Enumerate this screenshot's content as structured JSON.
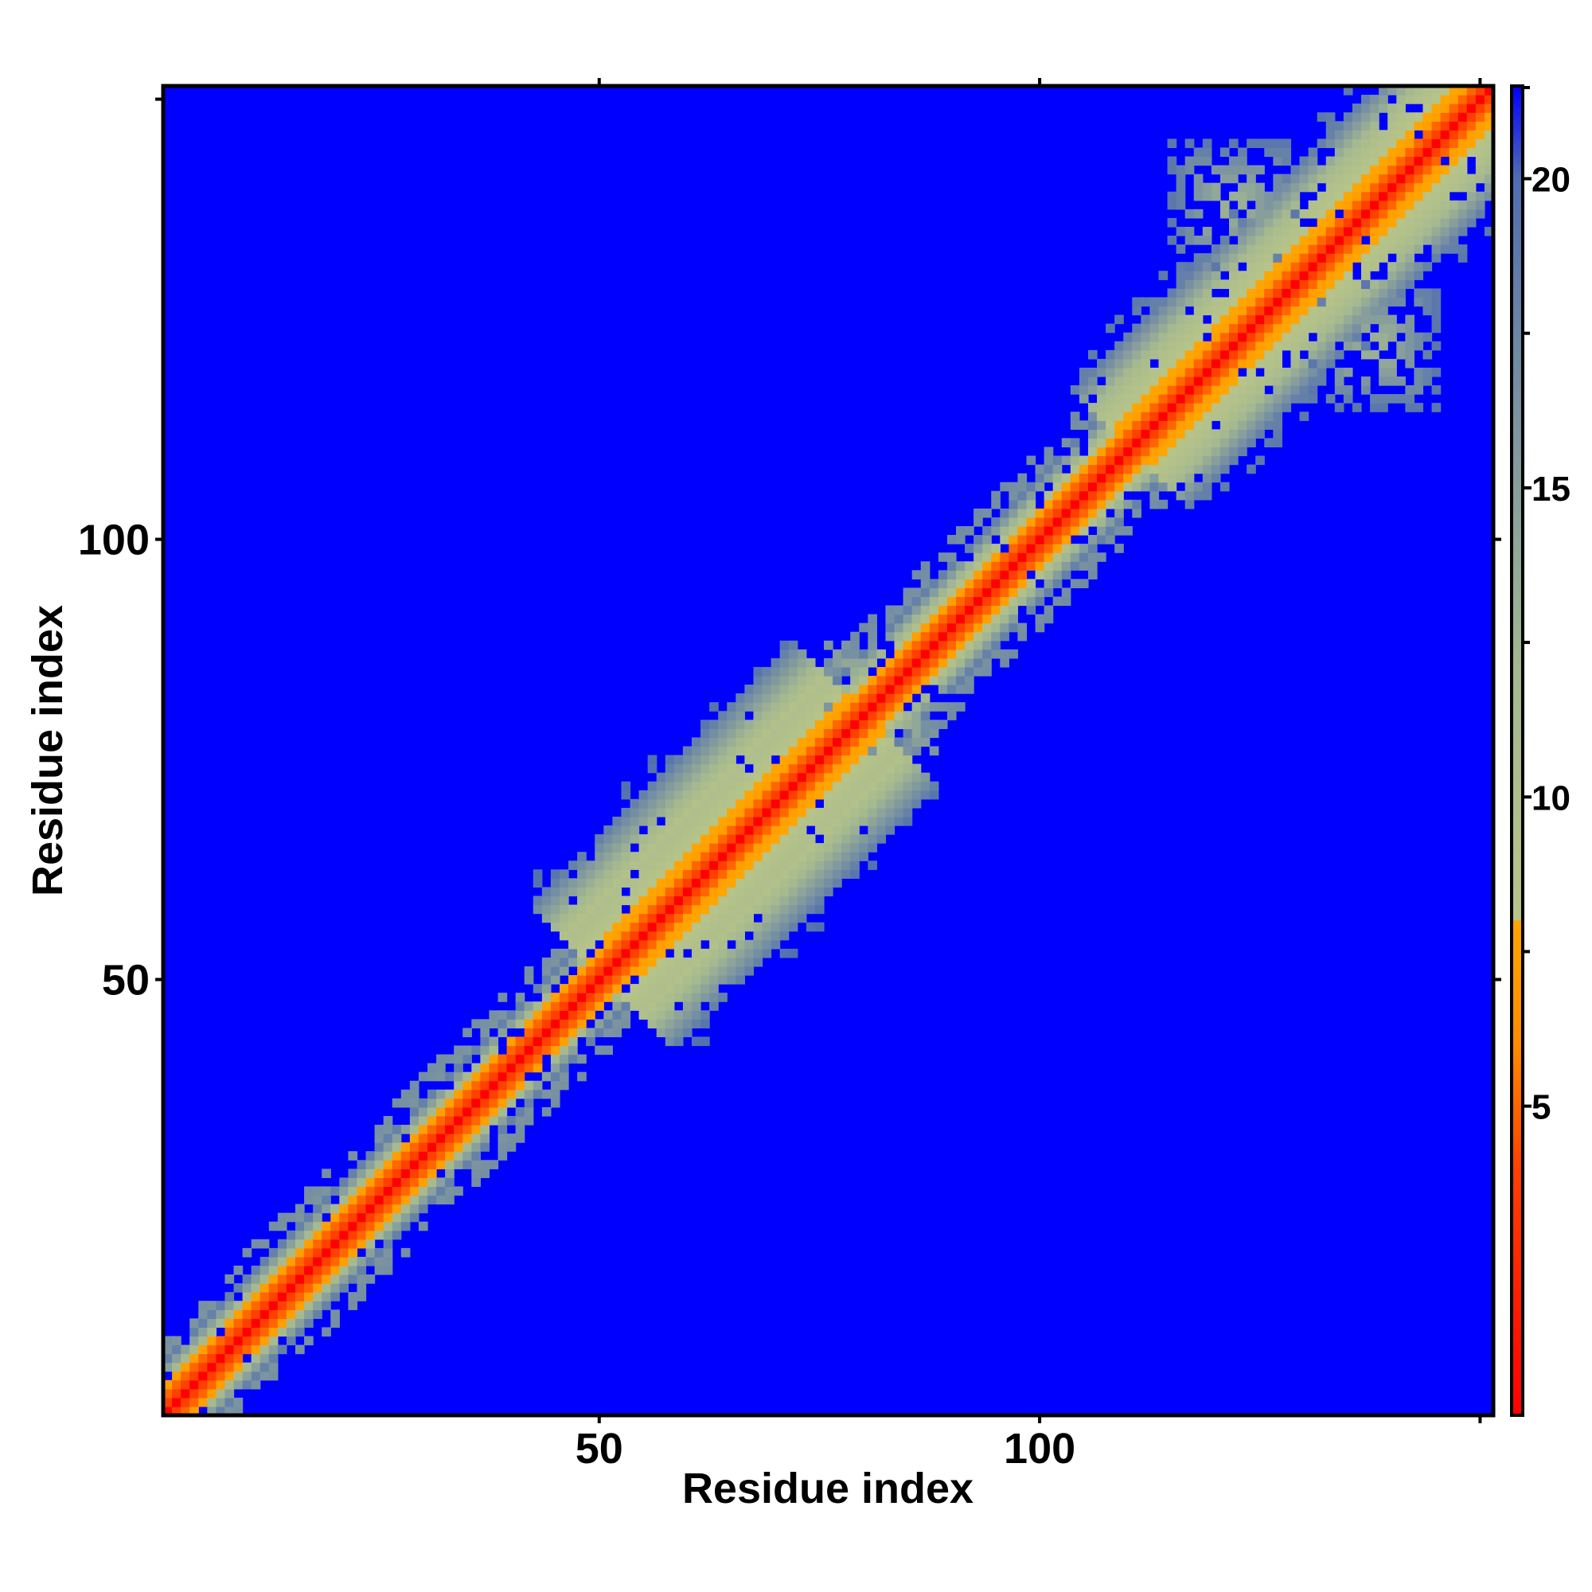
{
  "chart_data": {
    "type": "heatmap",
    "title": "",
    "xlabel": "Residue index",
    "ylabel": "Residue index",
    "n_residues": 151,
    "xlim": [
      1,
      151
    ],
    "ylim": [
      1,
      151
    ],
    "x_ticks": [
      {
        "value": 50,
        "label": "50"
      },
      {
        "value": 100,
        "label": "100"
      }
    ],
    "x_minor_ticks": [
      150
    ],
    "y_ticks": [
      {
        "value": 50,
        "label": "50"
      },
      {
        "value": 100,
        "label": "100"
      }
    ],
    "y_minor_ticks": [
      150
    ],
    "colorbar": {
      "range": [
        0,
        21.5
      ],
      "ticks": [
        {
          "value": 5,
          "label": "5"
        },
        {
          "value": 10,
          "label": "10"
        },
        {
          "value": 15,
          "label": "15"
        },
        {
          "value": 20,
          "label": "20"
        }
      ],
      "minor_ticks": [
        7.5,
        12.5,
        17.5,
        22.5
      ],
      "colors": [
        {
          "value": 0,
          "color": "#ff0000"
        },
        {
          "value": 4,
          "color": "#ff4000"
        },
        {
          "value": 6,
          "color": "#ff8c00"
        },
        {
          "value": 8,
          "color": "#ffa500"
        },
        {
          "value": 8.01,
          "color": "#b8c488"
        },
        {
          "value": 12,
          "color": "#a4b890"
        },
        {
          "value": 16,
          "color": "#7d95a0"
        },
        {
          "value": 20,
          "color": "#4f6db0"
        },
        {
          "value": 21.5,
          "color": "#0000ff"
        }
      ]
    },
    "background_value": 21.5,
    "description": "Symmetric residue-residue distance map: near-diagonal pairs have small distances (red/orange), distant pairs saturate at the maximum (blue).",
    "regions": [
      {
        "from": 1,
        "to": 50,
        "band_half_width": 6,
        "fuzz": 0.45
      },
      {
        "from": 50,
        "to": 80,
        "band_half_width": 16,
        "fuzz": 0.15
      },
      {
        "from": 80,
        "to": 110,
        "band_half_width": 7,
        "fuzz": 0.5
      },
      {
        "from": 110,
        "to": 151,
        "band_half_width": 13,
        "fuzz": 0.3
      }
    ],
    "off_diagonal_patches": [
      {
        "x": 122,
        "y": 138,
        "size": 7
      },
      {
        "x": 138,
        "y": 122,
        "size": 7
      },
      {
        "x": 80,
        "y": 84,
        "size": 4
      }
    ]
  }
}
